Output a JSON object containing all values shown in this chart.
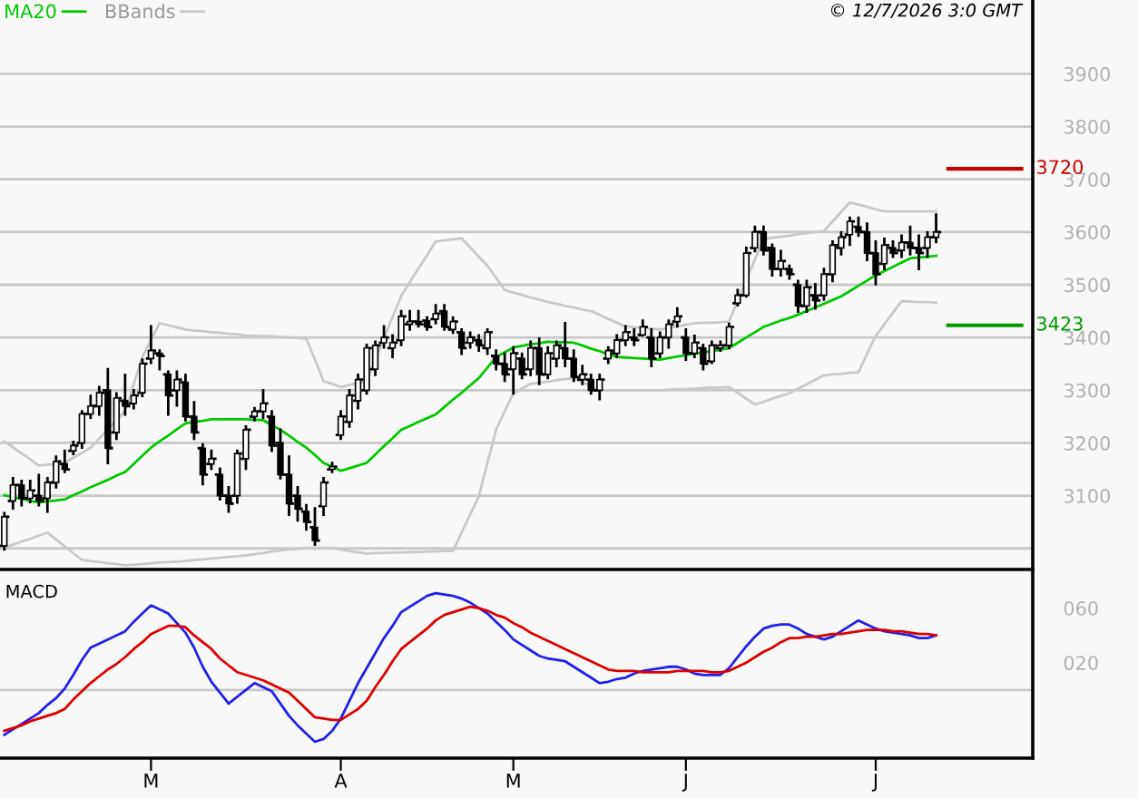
{
  "chart_data": [
    {
      "type": "candlestick",
      "color": "#000000",
      "legend": "top left",
      "grid": "y",
      "tick_labels": "y",
      "annotations": [
        "© 12/7/2026 3:0 GMT"
      ],
      "categories": [
        null,
        null,
        null,
        null,
        null,
        null,
        null,
        null,
        null,
        null,
        null,
        null,
        null,
        null,
        null,
        null,
        null,
        null,
        null,
        null,
        null,
        null,
        null,
        null,
        null,
        null,
        null,
        null,
        null,
        null,
        null,
        null,
        null,
        null,
        null,
        null,
        null,
        null,
        null,
        null,
        null,
        null,
        null,
        null,
        null,
        null,
        null,
        null,
        null,
        null,
        null,
        null,
        null,
        null,
        null,
        null,
        null,
        null,
        null,
        null,
        null,
        null,
        null,
        null,
        null,
        null,
        null,
        null,
        null,
        null,
        null,
        null,
        null,
        null,
        null,
        null,
        null,
        null,
        null,
        null,
        null,
        null,
        null,
        null,
        null,
        null,
        null,
        null,
        null,
        null,
        null,
        null,
        null,
        null,
        null,
        null,
        null,
        null,
        null,
        null,
        null,
        null,
        null,
        null,
        null,
        null,
        null,
        null,
        null
      ],
      "ylim": [
        2960,
        4040
      ],
      "yticks": [
        {
          "value": 3000,
          "label": null
        },
        3100,
        3200,
        3300,
        3400,
        3500,
        3600,
        3700,
        3800,
        3900
      ],
      "ref_lines": [
        {
          "axis": "y",
          "value": 3720,
          "label": "3720",
          "color": "#cc0000"
        },
        {
          "axis": "y",
          "value": 3423,
          "label": "3423",
          "color": "#009900"
        }
      ],
      "ohlc": [
        [
          3005,
          3067,
          2998,
          3060
        ],
        [
          3090,
          3133,
          3076,
          3120
        ],
        [
          3120,
          3128,
          3082,
          3095
        ],
        [
          3095,
          3128,
          3088,
          3110
        ],
        [
          3100,
          3139,
          3082,
          3090
        ],
        [
          3095,
          3133,
          3070,
          3125
        ],
        [
          3125,
          3174,
          3116,
          3165
        ],
        [
          3160,
          3185,
          3145,
          3150
        ],
        [
          3185,
          3202,
          3179,
          3195
        ],
        [
          3200,
          3260,
          3191,
          3255
        ],
        [
          3255,
          3289,
          3248,
          3270
        ],
        [
          3270,
          3306,
          3254,
          3295
        ],
        [
          3300,
          3340,
          3162,
          3190
        ],
        [
          3220,
          3294,
          3208,
          3285
        ],
        [
          3280,
          3329,
          3254,
          3270
        ],
        [
          3275,
          3300,
          3266,
          3290
        ],
        [
          3295,
          3358,
          3289,
          3350
        ],
        [
          3360,
          3421,
          3352,
          3375
        ],
        [
          3370,
          3375,
          3340,
          3365
        ],
        [
          3330,
          3335,
          3254,
          3290
        ],
        [
          3300,
          3335,
          3271,
          3320
        ],
        [
          3315,
          3329,
          3243,
          3250
        ],
        [
          3250,
          3277,
          3208,
          3220
        ],
        [
          3190,
          3197,
          3122,
          3140
        ],
        [
          3160,
          3185,
          3151,
          3170
        ],
        [
          3140,
          3151,
          3093,
          3100
        ],
        [
          3100,
          3116,
          3070,
          3085
        ],
        [
          3100,
          3185,
          3087,
          3180
        ],
        [
          3170,
          3231,
          3151,
          3225
        ],
        [
          3250,
          3266,
          3243,
          3260
        ],
        [
          3260,
          3300,
          3248,
          3275
        ],
        [
          3250,
          3260,
          3185,
          3195
        ],
        [
          3200,
          3225,
          3133,
          3140
        ],
        [
          3140,
          3174,
          3064,
          3085
        ],
        [
          3100,
          3116,
          3053,
          3075
        ],
        [
          3070,
          3082,
          3036,
          3050
        ],
        [
          3040,
          3076,
          3007,
          3015
        ],
        [
          3080,
          3133,
          3064,
          3125
        ],
        [
          3150,
          3162,
          3145,
          3155
        ],
        [
          3215,
          3260,
          3208,
          3250
        ],
        [
          3240,
          3300,
          3231,
          3290
        ],
        [
          3280,
          3329,
          3266,
          3320
        ],
        [
          3300,
          3386,
          3294,
          3380
        ],
        [
          3340,
          3392,
          3329,
          3385
        ],
        [
          3390,
          3421,
          3381,
          3400
        ],
        [
          3380,
          3404,
          3363,
          3390
        ],
        [
          3395,
          3450,
          3386,
          3440
        ],
        [
          3425,
          3450,
          3415,
          3430
        ],
        [
          3430,
          3450,
          3421,
          3425
        ],
        [
          3432,
          3438,
          3415,
          3420
        ],
        [
          3435,
          3461,
          3427,
          3445
        ],
        [
          3450,
          3461,
          3415,
          3420
        ],
        [
          3415,
          3438,
          3409,
          3430
        ],
        [
          3410,
          3415,
          3369,
          3380
        ],
        [
          3390,
          3409,
          3381,
          3400
        ],
        [
          3395,
          3404,
          3375,
          3385
        ],
        [
          3380,
          3415,
          3369,
          3410
        ],
        [
          3365,
          3375,
          3340,
          3350
        ],
        [
          3350,
          3369,
          3318,
          3330
        ],
        [
          3340,
          3381,
          3294,
          3370
        ],
        [
          3360,
          3369,
          3323,
          3330
        ],
        [
          3340,
          3392,
          3329,
          3380
        ],
        [
          3380,
          3398,
          3312,
          3330
        ],
        [
          3330,
          3381,
          3323,
          3370
        ],
        [
          3360,
          3392,
          3346,
          3385
        ],
        [
          3380,
          3427,
          3346,
          3360
        ],
        [
          3360,
          3375,
          3318,
          3325
        ],
        [
          3320,
          3346,
          3312,
          3330
        ],
        [
          3320,
          3329,
          3294,
          3300
        ],
        [
          3300,
          3329,
          3283,
          3320
        ],
        [
          3360,
          3381,
          3352,
          3375
        ],
        [
          3370,
          3404,
          3363,
          3395
        ],
        [
          3395,
          3421,
          3386,
          3410
        ],
        [
          3400,
          3415,
          3386,
          3395
        ],
        [
          3405,
          3432,
          3404,
          3420
        ],
        [
          3400,
          3415,
          3346,
          3360
        ],
        [
          3370,
          3409,
          3363,
          3400
        ],
        [
          3400,
          3432,
          3381,
          3425
        ],
        [
          3430,
          3455,
          3421,
          3440
        ],
        [
          3400,
          3415,
          3358,
          3370
        ],
        [
          3370,
          3403,
          3363,
          3390
        ],
        [
          3380,
          3386,
          3340,
          3350
        ],
        [
          3355,
          3392,
          3352,
          3385
        ],
        [
          3380,
          3392,
          3375,
          3385
        ],
        [
          3385,
          3426,
          3380,
          3420
        ],
        [
          3465,
          3490,
          3461,
          3480
        ],
        [
          3480,
          3570,
          3478,
          3560
        ],
        [
          3570,
          3610,
          3564,
          3600
        ],
        [
          3600,
          3610,
          3558,
          3565
        ],
        [
          3570,
          3576,
          3518,
          3530
        ],
        [
          3530,
          3564,
          3518,
          3545
        ],
        [
          3530,
          3536,
          3512,
          3520
        ],
        [
          3500,
          3507,
          3449,
          3460
        ],
        [
          3460,
          3507,
          3449,
          3495
        ],
        [
          3480,
          3501,
          3455,
          3470
        ],
        [
          3480,
          3530,
          3472,
          3520
        ],
        [
          3520,
          3582,
          3507,
          3575
        ],
        [
          3570,
          3599,
          3558,
          3590
        ],
        [
          3595,
          3627,
          3576,
          3620
        ],
        [
          3610,
          3627,
          3593,
          3600
        ],
        [
          3600,
          3616,
          3547,
          3560
        ],
        [
          3560,
          3582,
          3501,
          3520
        ],
        [
          3540,
          3587,
          3530,
          3575
        ],
        [
          3570,
          3582,
          3553,
          3560
        ],
        [
          3565,
          3593,
          3553,
          3580
        ],
        [
          3580,
          3610,
          3558,
          3570
        ],
        [
          3570,
          3593,
          3530,
          3560
        ],
        [
          3570,
          3599,
          3553,
          3590
        ],
        [
          3590,
          3633,
          3581,
          3600
        ]
      ],
      "series": [
        {
          "name": "MA20",
          "type": "line",
          "color": "#00c800",
          "values": [
            3101,
            3097,
            3094,
            3090,
            3087,
            3089,
            3091,
            3093,
            3101,
            3108,
            3116,
            3123,
            3130,
            3138,
            3145,
            3160,
            3176,
            3191,
            3203,
            3214,
            3226,
            3237,
            3240,
            3242,
            3245,
            3245,
            3245,
            3245,
            3245,
            3244,
            3243,
            3234,
            3225,
            3214,
            3202,
            3191,
            3177,
            3162,
            3155,
            3147,
            3152,
            3157,
            3162,
            3178,
            3194,
            3209,
            3225,
            3232,
            3240,
            3247,
            3254,
            3268,
            3282,
            3295,
            3309,
            3323,
            3343,
            3363,
            3372,
            3381,
            3384,
            3387,
            3389,
            3392,
            3391,
            3391,
            3390,
            3385,
            3379,
            3374,
            3368,
            3363,
            3362,
            3361,
            3360,
            3359,
            3358,
            3361,
            3364,
            3366,
            3369,
            3372,
            3374,
            3377,
            3380,
            3390,
            3400,
            3410,
            3420,
            3426,
            3432,
            3437,
            3443,
            3450,
            3457,
            3464,
            3471,
            3478,
            3488,
            3498,
            3508,
            3518,
            3526,
            3534,
            3542,
            3550,
            3552,
            3553,
            3555
          ]
        },
        {
          "name": "BBands",
          "type": "line",
          "color": "#c8c8c8",
          "values": [
            3203,
            3192,
            3180,
            3169,
            3157,
            3159,
            3160,
            3162,
            3172,
            3181,
            3191,
            3208,
            3226,
            3243,
            3260,
            3312,
            3363,
            3395,
            3427,
            3423,
            3419,
            3415,
            3413,
            3412,
            3410,
            3409,
            3407,
            3406,
            3404,
            3403,
            3402,
            3402,
            3401,
            3400,
            3399,
            3398,
            3358,
            3317,
            3312,
            3306,
            3310,
            3313,
            3317,
            3358,
            3398,
            3439,
            3479,
            3505,
            3531,
            3556,
            3582,
            3584,
            3586,
            3588,
            3571,
            3553,
            3536,
            3513,
            3490,
            3485,
            3481,
            3476,
            3472,
            3467,
            3464,
            3460,
            3457,
            3453,
            3450,
            3443,
            3435,
            3428,
            3421,
            3420,
            3418,
            3417,
            3415,
            3418,
            3421,
            3424,
            3427,
            3428,
            3428,
            3429,
            3430,
            3469,
            3509,
            3548,
            3587,
            3589,
            3591,
            3593,
            3596,
            3598,
            3600,
            3602,
            3620,
            3638,
            3656,
            3652,
            3648,
            3643,
            3639,
            3639,
            3639,
            3639,
            3639,
            3639,
            3639
          ]
        },
        {
          "type": "line",
          "color": "#c8c8c8",
          "values": [
            3001,
            3007,
            3013,
            3018,
            3024,
            3030,
            3017,
            3004,
            2991,
            2978,
            2976,
            2974,
            2972,
            2970,
            2968,
            2969,
            2970,
            2972,
            2973,
            2974,
            2975,
            2976,
            2978,
            2979,
            2981,
            2982,
            2984,
            2985,
            2987,
            2989,
            2991,
            2994,
            2996,
            2998,
            2999,
            3001,
            3001,
            3001,
            3001,
            2998,
            2995,
            2993,
            2990,
            2991,
            2991,
            2992,
            2992,
            2993,
            2993,
            2994,
            2994,
            2995,
            2995,
            3030,
            3064,
            3099,
            3162,
            3225,
            3260,
            3294,
            3303,
            3312,
            3314,
            3316,
            3319,
            3321,
            3323,
            3315,
            3308,
            3300,
            3300,
            3300,
            3300,
            3300,
            3300,
            3300,
            3300,
            3301,
            3302,
            3302,
            3303,
            3304,
            3305,
            3305,
            3306,
            3295,
            3284,
            3273,
            3278,
            3284,
            3289,
            3294,
            3303,
            3311,
            3320,
            3328,
            3330,
            3331,
            3333,
            3334,
            3369,
            3403,
            3425,
            3447,
            3469,
            3468,
            3467,
            3467,
            3466
          ]
        }
      ]
    },
    {
      "type": "line",
      "title": "MACD",
      "tick_labels": true,
      "categories": [
        null,
        null,
        null,
        null,
        null,
        null,
        null,
        null,
        null,
        null,
        null,
        null,
        null,
        null,
        null,
        null,
        null,
        "M",
        null,
        null,
        null,
        null,
        null,
        null,
        null,
        null,
        null,
        null,
        null,
        null,
        null,
        null,
        null,
        null,
        null,
        null,
        null,
        null,
        null,
        "A",
        null,
        null,
        null,
        null,
        null,
        null,
        null,
        null,
        null,
        null,
        null,
        null,
        null,
        null,
        null,
        null,
        null,
        null,
        null,
        "M",
        null,
        null,
        null,
        null,
        null,
        null,
        null,
        null,
        null,
        null,
        null,
        null,
        null,
        null,
        null,
        null,
        null,
        null,
        null,
        "J",
        null,
        null,
        null,
        null,
        null,
        null,
        null,
        null,
        null,
        null,
        null,
        null,
        null,
        null,
        null,
        null,
        null,
        null,
        null,
        null,
        null,
        "J",
        null,
        null,
        null,
        null,
        null,
        null,
        null
      ],
      "ylim": [
        -50,
        87
      ],
      "yticks": [
        {
          "value": 20,
          "label": "020"
        },
        {
          "value": 60,
          "label": "060"
        }
      ],
      "ref_lines": [
        {
          "axis": "y",
          "value": 0,
          "color": "#c8c8c8"
        }
      ],
      "series": [
        {
          "color": "#2020e8",
          "values": [
            -33,
            -29,
            -25,
            -21,
            -17,
            -11,
            -6,
            1,
            11,
            22,
            31,
            34,
            37,
            40,
            43,
            50,
            56,
            62,
            59,
            56,
            49,
            42,
            31,
            17,
            6,
            -2,
            -10,
            -5,
            0,
            5,
            2,
            -1,
            -10,
            -19,
            -26,
            -32,
            -38,
            -36,
            -30,
            -21,
            -8,
            5,
            16,
            27,
            38,
            47,
            57,
            61,
            65,
            69,
            71,
            70,
            69,
            67,
            64,
            60,
            56,
            50,
            44,
            37,
            33,
            29,
            25,
            23,
            22,
            21,
            17,
            13,
            9,
            5,
            6,
            8,
            9,
            12,
            14,
            15,
            16,
            17,
            17,
            15,
            12,
            11,
            11,
            11,
            16,
            24,
            32,
            39,
            45,
            47,
            48,
            48,
            45,
            41,
            39,
            37,
            39,
            43,
            47,
            51,
            48,
            45,
            43,
            42,
            41,
            40,
            38,
            38,
            40
          ]
        },
        {
          "color": "#dd0000",
          "values": [
            -30,
            -28,
            -26,
            -23,
            -21,
            -19,
            -17,
            -14,
            -7,
            -1,
            5,
            10,
            15,
            19,
            24,
            30,
            35,
            41,
            44,
            47,
            47,
            46,
            40,
            35,
            30,
            23,
            18,
            13,
            11,
            9,
            7,
            4,
            1,
            -2,
            -8,
            -14,
            -20,
            -21,
            -22,
            -22,
            -18,
            -14,
            -8,
            2,
            11,
            21,
            30,
            35,
            40,
            45,
            51,
            55,
            57,
            59,
            61,
            60,
            58,
            55,
            53,
            49,
            46,
            42,
            39,
            36,
            33,
            30,
            27,
            24,
            21,
            18,
            15,
            14,
            14,
            14,
            13,
            13,
            13,
            13,
            14,
            14,
            14,
            14,
            13,
            13,
            14,
            17,
            20,
            24,
            28,
            31,
            35,
            38,
            38,
            39,
            39,
            40,
            41,
            41,
            42,
            43,
            44,
            44,
            44,
            43,
            43,
            42,
            41,
            41,
            40
          ]
        }
      ]
    }
  ]
}
